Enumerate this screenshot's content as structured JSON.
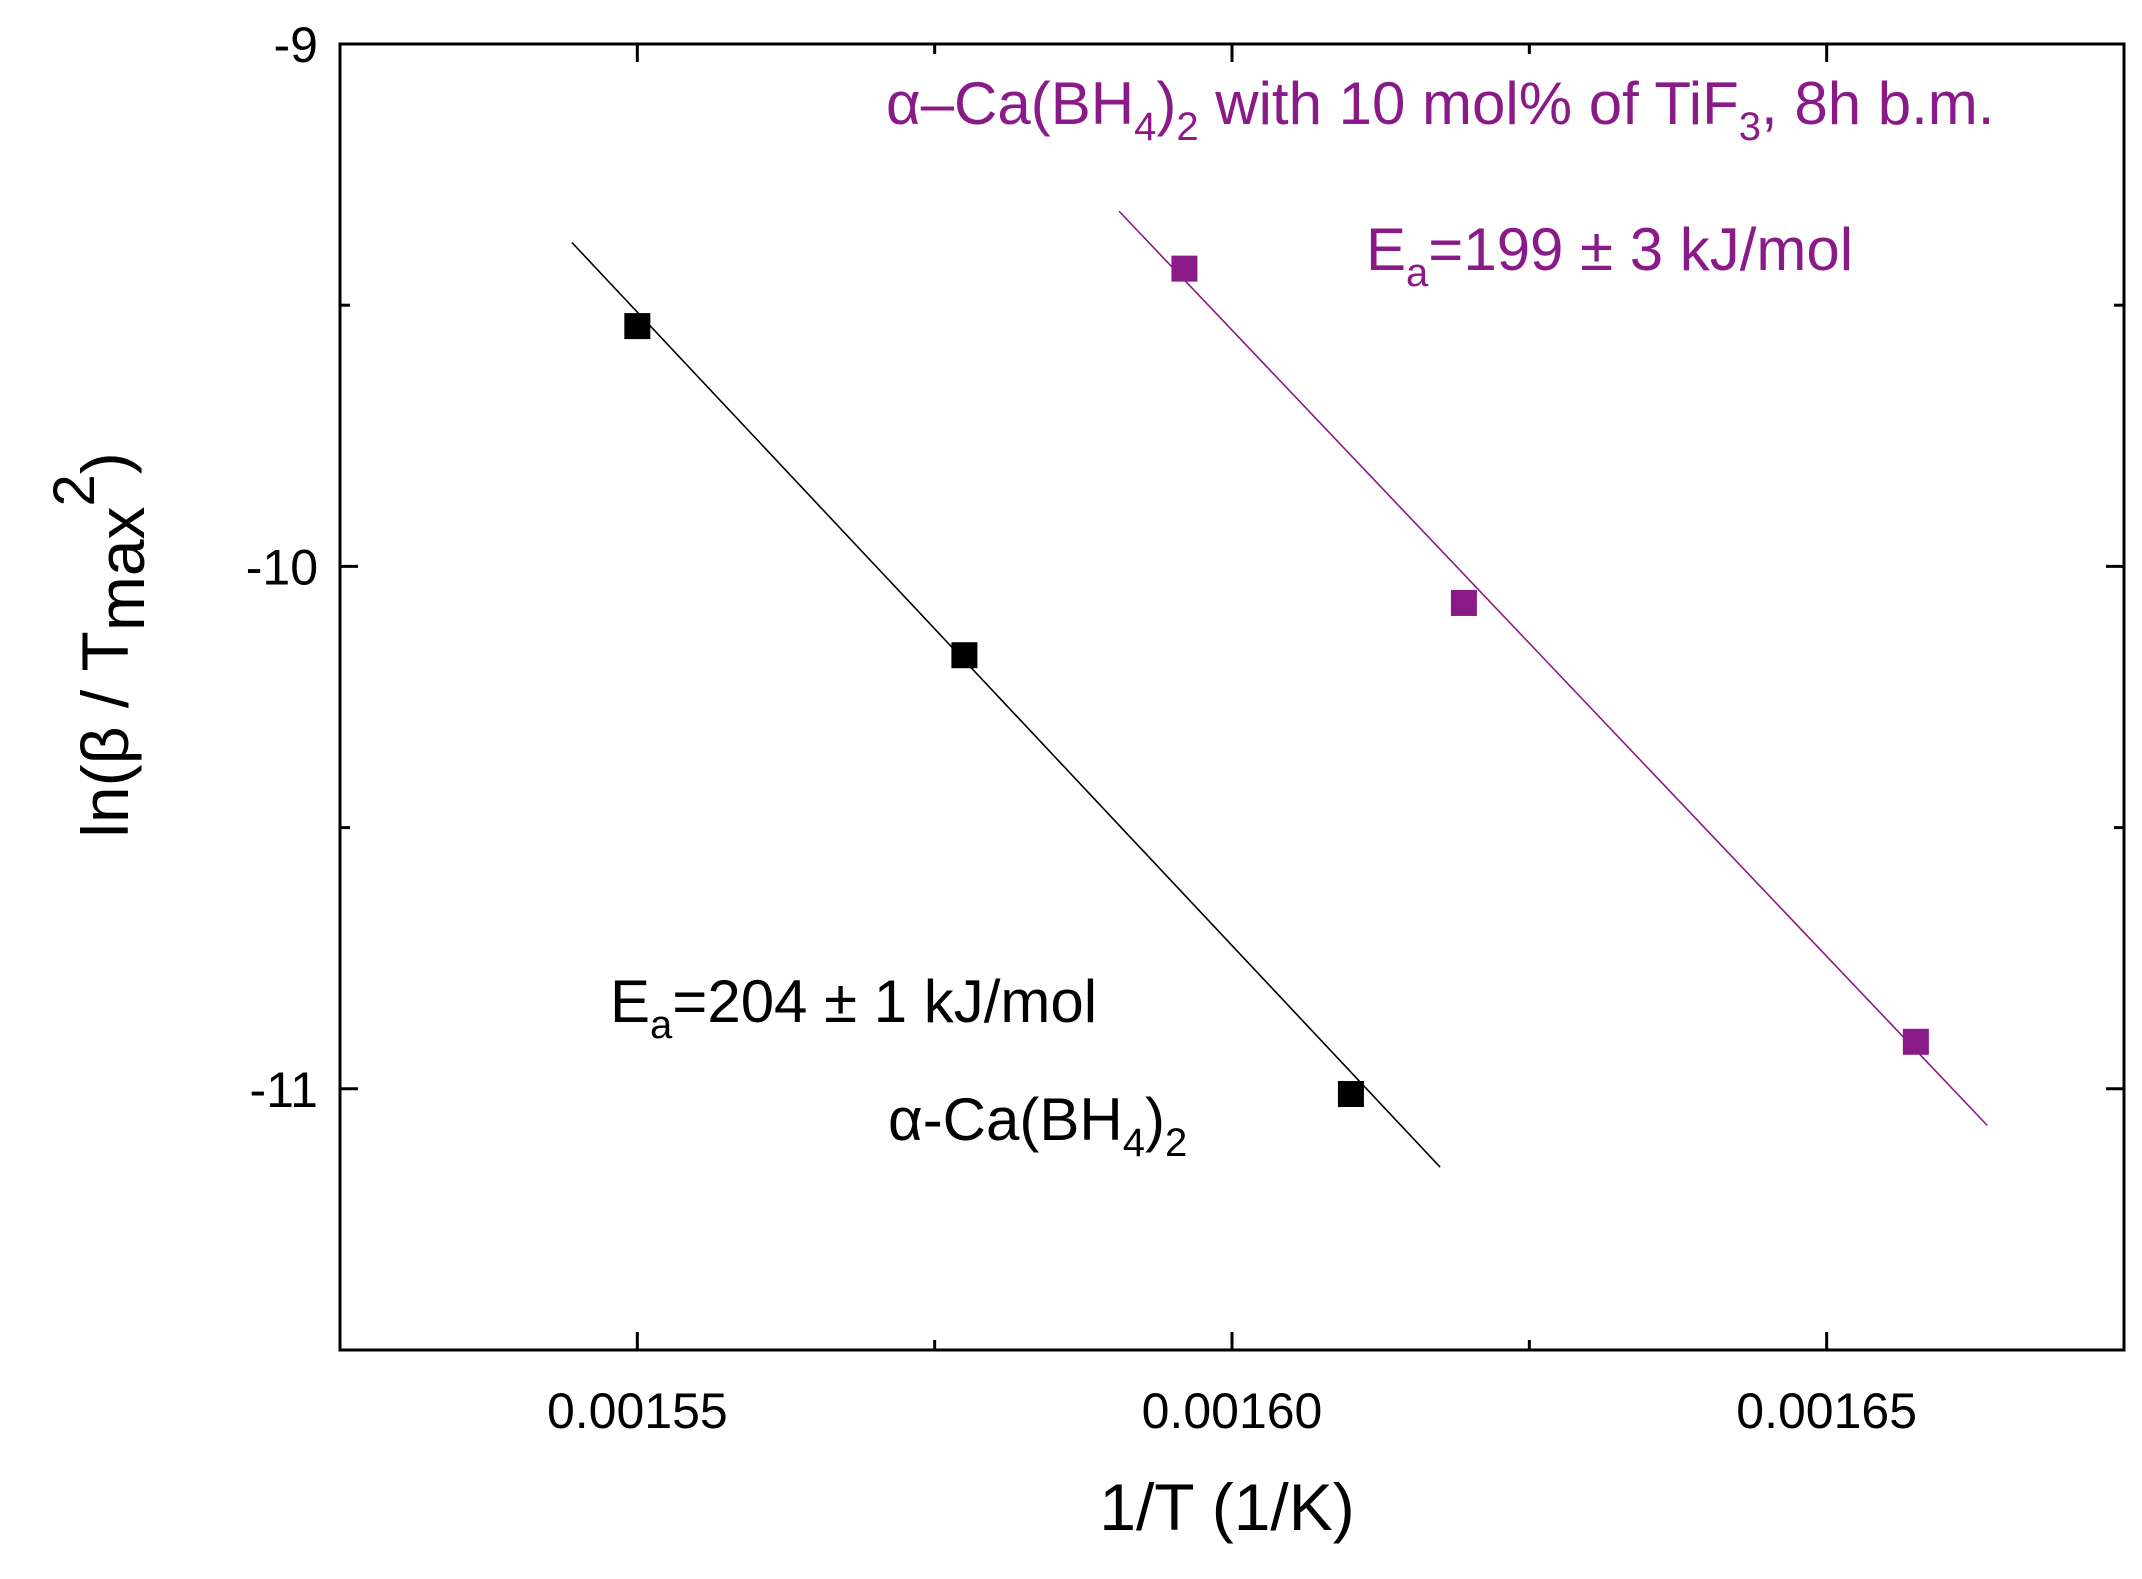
{
  "chart_data": {
    "type": "scatter",
    "title": "",
    "xlabel": "1/T (1/K)",
    "ylabel": {
      "prefix": "ln(β / T",
      "sub": "max",
      "sup": "2",
      "suffix": ")"
    },
    "xlim": [
      0.001525,
      0.001675
    ],
    "ylim": [
      -11.5,
      -9.0
    ],
    "x_ticks": [
      {
        "value": 0.00155,
        "label": "0.00155"
      },
      {
        "value": 0.0016,
        "label": "0.00160"
      },
      {
        "value": 0.00165,
        "label": "0.00165"
      }
    ],
    "x_minor_ticks": [
      0.001575,
      0.001625
    ],
    "y_ticks": [
      {
        "value": -9,
        "label": "-9"
      },
      {
        "value": -10,
        "label": "-10"
      },
      {
        "value": -11,
        "label": "-11"
      }
    ],
    "y_minor_ticks": [
      -9.5,
      -10.5
    ],
    "grid": false,
    "series": [
      {
        "name": "α-Ca(BH4)2",
        "color": "#000000",
        "marker": "square",
        "x": [
          0.00155,
          0.0015775,
          0.00161
        ],
        "y": [
          -9.54,
          -10.17,
          -11.01
        ],
        "fit_line": {
          "x": [
            0.0015445,
            0.0016175
          ],
          "y": [
            -9.38,
            -11.15
          ]
        },
        "annotation": {
          "name_prefix": "α-Ca(BH",
          "name_sub1": "4",
          "name_mid": ")",
          "name_sub2": "2",
          "energy_prefix": "E",
          "energy_sub": "a",
          "energy_text": "=204 ± 1 kJ/mol"
        }
      },
      {
        "name": "α–Ca(BH4)2 with 10 mol% of TiF3, 8h b.m.",
        "color": "#8B1A89",
        "marker": "square",
        "x": [
          0.001596,
          0.0016195,
          0.0016575
        ],
        "y": [
          -9.43,
          -10.07,
          -10.91
        ],
        "fit_line": {
          "x": [
            0.0015905,
            0.0016635
          ],
          "y": [
            -9.32,
            -11.07
          ]
        },
        "annotation": {
          "name_prefix": "α–Ca(BH",
          "name_sub1": "4",
          "name_mid": ")",
          "name_sub2": "2",
          "name_with": " with 10 mol% of TiF",
          "name_sub3": "3",
          "name_suffix": ", 8h b.m.",
          "energy_prefix": "E",
          "energy_sub": "a",
          "energy_text": "=199 ± 3 kJ/mol"
        }
      }
    ]
  }
}
